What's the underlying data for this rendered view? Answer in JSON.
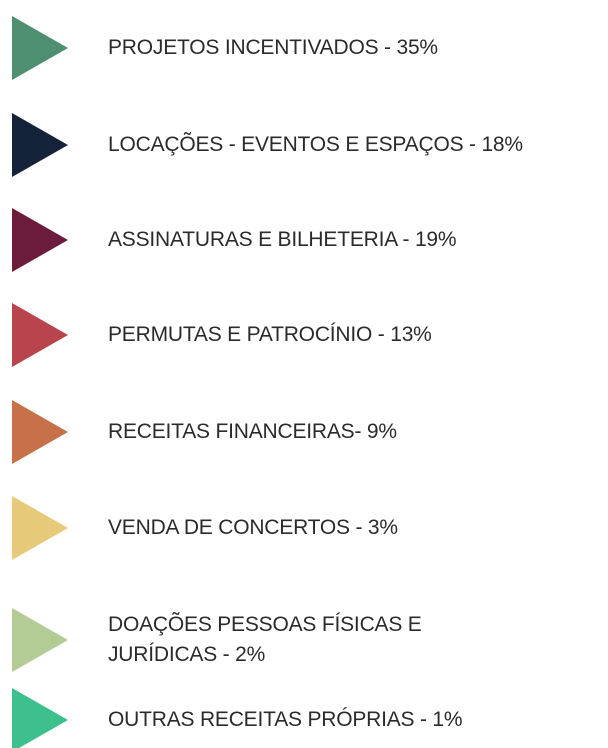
{
  "items": [
    {
      "lines": [
        "PROJETOS INCENTIVADOS - 35%"
      ],
      "color": "#4e8f72"
    },
    {
      "lines": [
        "LOCAÇÕES - EVENTOS E ESPAÇOS - 18%"
      ],
      "color": "#15233a"
    },
    {
      "lines": [
        "ASSINATURAS E BILHETERIA - 19%"
      ],
      "color": "#6b1c3c"
    },
    {
      "lines": [
        "PERMUTAS E PATROCÍNIO - 13%"
      ],
      "color": "#b9444e"
    },
    {
      "lines": [
        "RECEITAS FINANCEIRAS- 9%"
      ],
      "color": "#c8704a"
    },
    {
      "lines": [
        "VENDA DE CONCERTOS - 3%"
      ],
      "color": "#e7c97a"
    },
    {
      "lines": [
        "DOAÇÕES PESSOAS FÍSICAS E",
        "JURÍDICAS - 2%"
      ],
      "color": "#b3cc95"
    },
    {
      "lines": [
        "OUTRAS RECEITAS PRÓPRIAS - 1%"
      ],
      "color": "#3dbf8e"
    }
  ]
}
